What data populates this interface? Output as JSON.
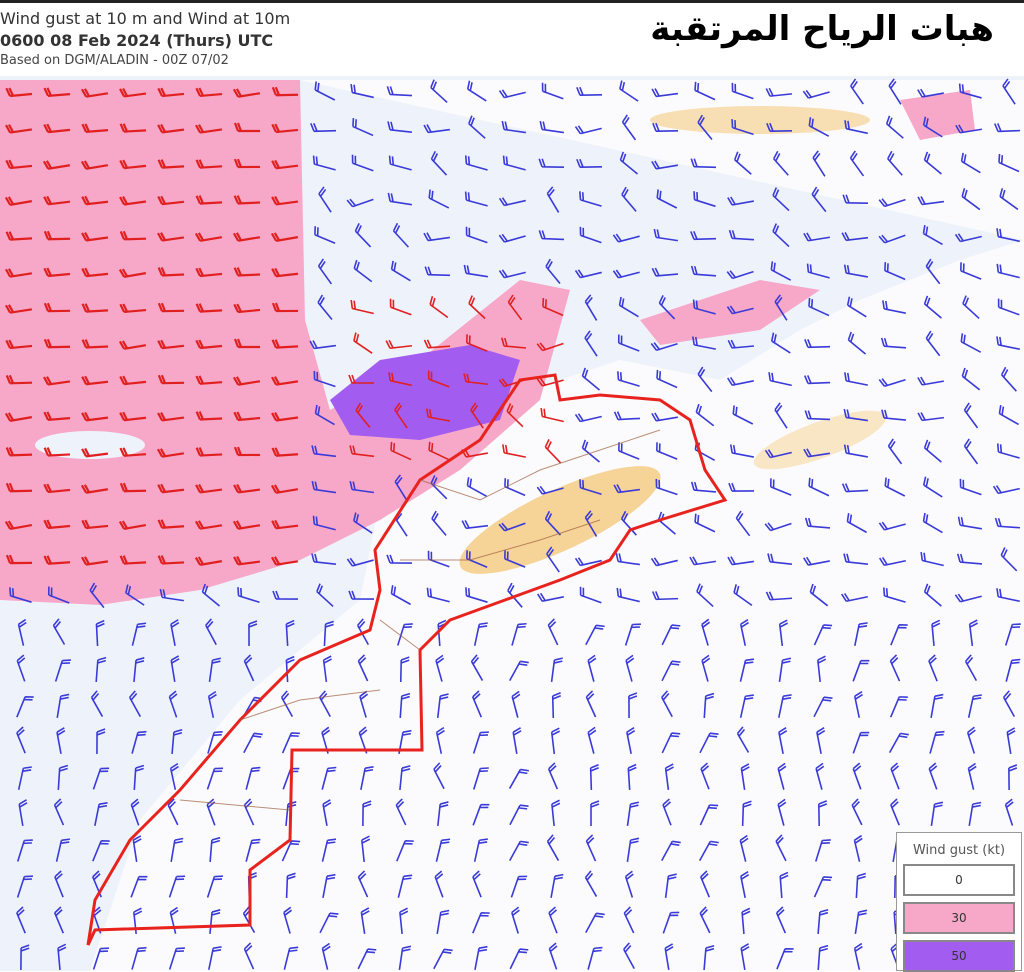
{
  "header": {
    "title": "Wind gust at 10 m and Wind at 10m",
    "valid_time": "0600 08 Feb 2024 (Thurs) UTC",
    "model": "Based on DGM/ALADIN - 00Z 07/02",
    "arabic_title": "هبات الرياح المرتقبة"
  },
  "legend": {
    "title": "Wind gust (kt)",
    "items": [
      {
        "label": "0",
        "color": "#ffffff"
      },
      {
        "label": "30",
        "color": "#f7a8c8"
      },
      {
        "label": "50",
        "color": "#a35cf0"
      }
    ]
  },
  "colors": {
    "gust_30": "#f7a8c8",
    "gust_50": "#a35cf0",
    "border": "#e8231e",
    "barb_land": "#3a3ad8",
    "barb_sea": "#e02020",
    "terrain": "#f0b030"
  }
}
